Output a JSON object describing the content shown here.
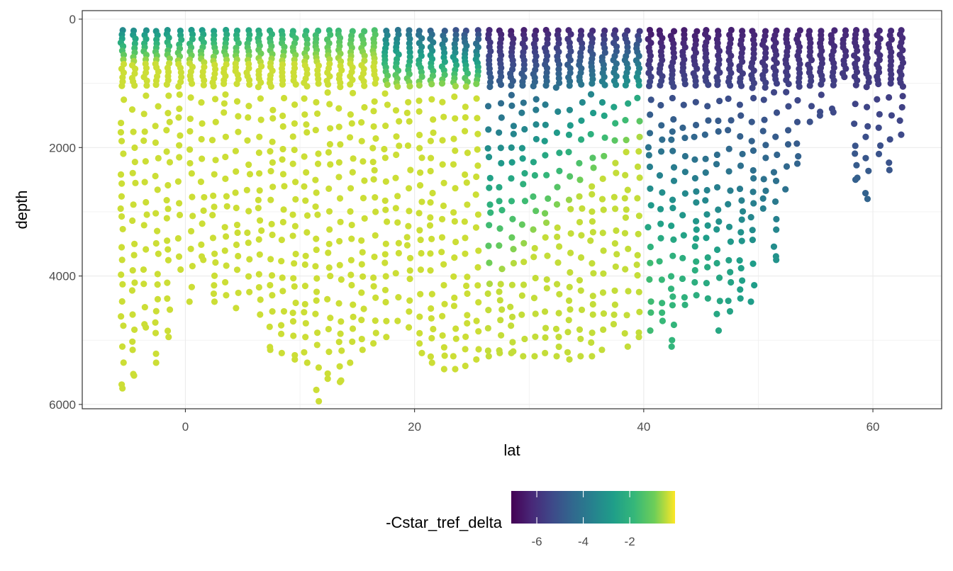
{
  "chart_data": {
    "type": "scatter",
    "xlabel": "lat",
    "ylabel": "depth",
    "xlim": [
      -9,
      66
    ],
    "ylim": [
      0,
      6200
    ],
    "y_reversed": true,
    "x_ticks": [
      0,
      20,
      40,
      60
    ],
    "y_ticks": [
      0,
      2000,
      4000,
      6000
    ],
    "grid": true,
    "legend": {
      "title": "-Cstar_tref_delta",
      "position": "bottom",
      "type": "colorbar",
      "range": [
        -7.1,
        -0.05
      ],
      "ticks": [
        -6,
        -4,
        -2
      ],
      "palette": "viridis"
    },
    "stations": [
      {
        "lat": -5.5,
        "max": 5750
      },
      {
        "lat": -4.5,
        "max": 5550
      },
      {
        "lat": -3.5,
        "max": 4800
      },
      {
        "lat": -2.5,
        "max": 5350
      },
      {
        "lat": -1.5,
        "max": 4950
      },
      {
        "lat": -0.5,
        "max": 3900
      },
      {
        "lat": 0.5,
        "max": 4400
      },
      {
        "lat": 1.5,
        "max": 3750
      },
      {
        "lat": 2.5,
        "max": 4400
      },
      {
        "lat": 3.5,
        "max": 4300
      },
      {
        "lat": 4.5,
        "max": 4500
      },
      {
        "lat": 5.5,
        "max": 4250
      },
      {
        "lat": 6.5,
        "max": 4600
      },
      {
        "lat": 7.5,
        "max": 5150
      },
      {
        "lat": 8.5,
        "max": 5200
      },
      {
        "lat": 9.5,
        "max": 5300
      },
      {
        "lat": 10.5,
        "max": 5350
      },
      {
        "lat": 11.5,
        "max": 5950
      },
      {
        "lat": 12.5,
        "max": 5600
      },
      {
        "lat": 13.5,
        "max": 5650
      },
      {
        "lat": 14.5,
        "max": 5350
      },
      {
        "lat": 15.5,
        "max": 5150
      },
      {
        "lat": 16.5,
        "max": 5050
      },
      {
        "lat": 17.5,
        "max": 4950
      },
      {
        "lat": 18.5,
        "max": 4700
      },
      {
        "lat": 19.5,
        "max": 4800
      },
      {
        "lat": 20.5,
        "max": 5200
      },
      {
        "lat": 21.5,
        "max": 5350
      },
      {
        "lat": 22.5,
        "max": 5450
      },
      {
        "lat": 23.5,
        "max": 5450
      },
      {
        "lat": 24.5,
        "max": 5400
      },
      {
        "lat": 25.5,
        "max": 5300
      },
      {
        "lat": 26.5,
        "max": 5250
      },
      {
        "lat": 27.5,
        "max": 5200
      },
      {
        "lat": 28.5,
        "max": 5200
      },
      {
        "lat": 29.5,
        "max": 5250
      },
      {
        "lat": 30.5,
        "max": 5250
      },
      {
        "lat": 31.5,
        "max": 5200
      },
      {
        "lat": 32.5,
        "max": 5250
      },
      {
        "lat": 33.5,
        "max": 5300
      },
      {
        "lat": 34.5,
        "max": 5250
      },
      {
        "lat": 35.5,
        "max": 5250
      },
      {
        "lat": 36.5,
        "max": 5150
      },
      {
        "lat": 37.5,
        "max": 4750
      },
      {
        "lat": 38.5,
        "max": 5100
      },
      {
        "lat": 39.5,
        "max": 4950
      },
      {
        "lat": 40.5,
        "max": 4850
      },
      {
        "lat": 41.5,
        "max": 4700
      },
      {
        "lat": 42.5,
        "max": 5100
      },
      {
        "lat": 43.5,
        "max": 4450
      },
      {
        "lat": 44.5,
        "max": 4300
      },
      {
        "lat": 45.5,
        "max": 4350
      },
      {
        "lat": 46.5,
        "max": 4850
      },
      {
        "lat": 47.5,
        "max": 4550
      },
      {
        "lat": 48.5,
        "max": 4350
      },
      {
        "lat": 49.5,
        "max": 4400
      },
      {
        "lat": 50.5,
        "max": 2950
      },
      {
        "lat": 51.5,
        "max": 3750
      },
      {
        "lat": 52.5,
        "max": 2650
      },
      {
        "lat": 53.5,
        "max": 2250
      },
      {
        "lat": 54.5,
        "max": 1600
      },
      {
        "lat": 55.5,
        "max": 1500
      },
      {
        "lat": 56.5,
        "max": 1450
      },
      {
        "lat": 57.5,
        "max": 900
      },
      {
        "lat": 58.5,
        "max": 2500
      },
      {
        "lat": 59.5,
        "max": 2800
      },
      {
        "lat": 60.5,
        "max": 2100
      },
      {
        "lat": 61.5,
        "max": 2350
      },
      {
        "lat": 62.5,
        "max": 1800
      }
    ]
  }
}
